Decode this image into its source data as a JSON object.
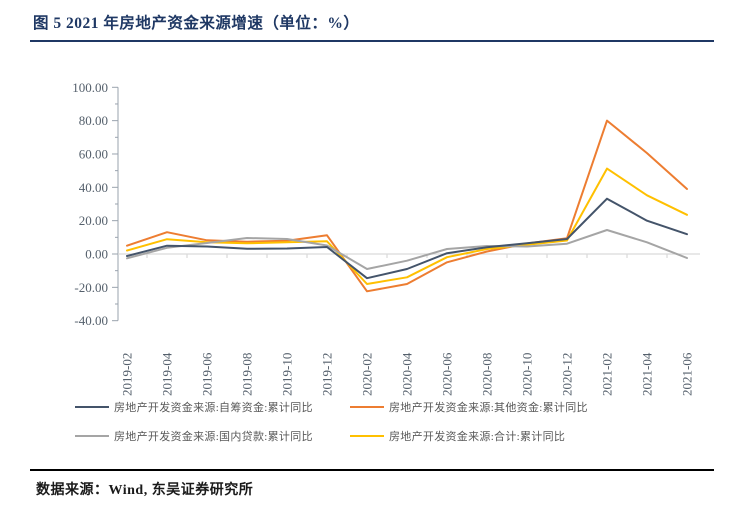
{
  "figure": {
    "title": "图 5 2021 年房地产资金来源增速（单位：%）",
    "source": "数据来源：Wind, 东吴证券研究所"
  },
  "chart_data": {
    "type": "line",
    "title": "2021年房地产资金来源增速",
    "unit": "%",
    "categories": [
      "2019-02",
      "2019-04",
      "2019-06",
      "2019-08",
      "2019-10",
      "2019-12",
      "2020-02",
      "2020-04",
      "2020-06",
      "2020-08",
      "2020-10",
      "2020-12",
      "2021-02",
      "2021-04",
      "2021-06"
    ],
    "series": [
      {
        "name": "self-raised-funds",
        "label": "房地产开发资金来源:自筹资金:累计同比",
        "color": "#44546A",
        "values": [
          -1.2,
          5.0,
          4.5,
          3.1,
          3.3,
          4.2,
          -14.5,
          -9.0,
          0.5,
          4.0,
          6.5,
          9.0,
          33.2,
          20.0,
          11.9
        ]
      },
      {
        "name": "other-funds",
        "label": "房地产开发资金来源:其他资金:累计同比",
        "color": "#ED7D31",
        "values": [
          5.0,
          13.1,
          8.2,
          7.4,
          7.9,
          11.2,
          -22.4,
          -18.0,
          -5.0,
          1.5,
          6.3,
          9.5,
          80.0,
          60.5,
          39.0
        ]
      },
      {
        "name": "domestic-loans",
        "label": "房地产开发资金来源:国内贷款:累计同比",
        "color": "#A5A5A5",
        "values": [
          -2.6,
          3.7,
          6.6,
          9.6,
          9.0,
          5.1,
          -9.0,
          -4.0,
          3.0,
          4.8,
          4.5,
          6.2,
          14.4,
          7.0,
          -2.4
        ]
      },
      {
        "name": "total",
        "label": "房地产开发资金来源:合计:累计同比",
        "color": "#FFC000",
        "values": [
          2.1,
          8.9,
          7.0,
          6.4,
          7.0,
          7.6,
          -18.0,
          -14.0,
          -1.9,
          3.0,
          5.5,
          8.1,
          51.2,
          35.2,
          23.5
        ]
      }
    ],
    "ylim": [
      -40,
      100
    ],
    "ytick_step": 20,
    "ytick_labels": [
      "100.00",
      "80.00",
      "60.00",
      "40.00",
      "20.00",
      "0.00",
      "-20.00",
      "-40.00"
    ],
    "grid": "zero-line-only",
    "legend_position": "bottom",
    "axis_color": "#9AA3AE",
    "zero_line_color": "#D9D9D9"
  }
}
